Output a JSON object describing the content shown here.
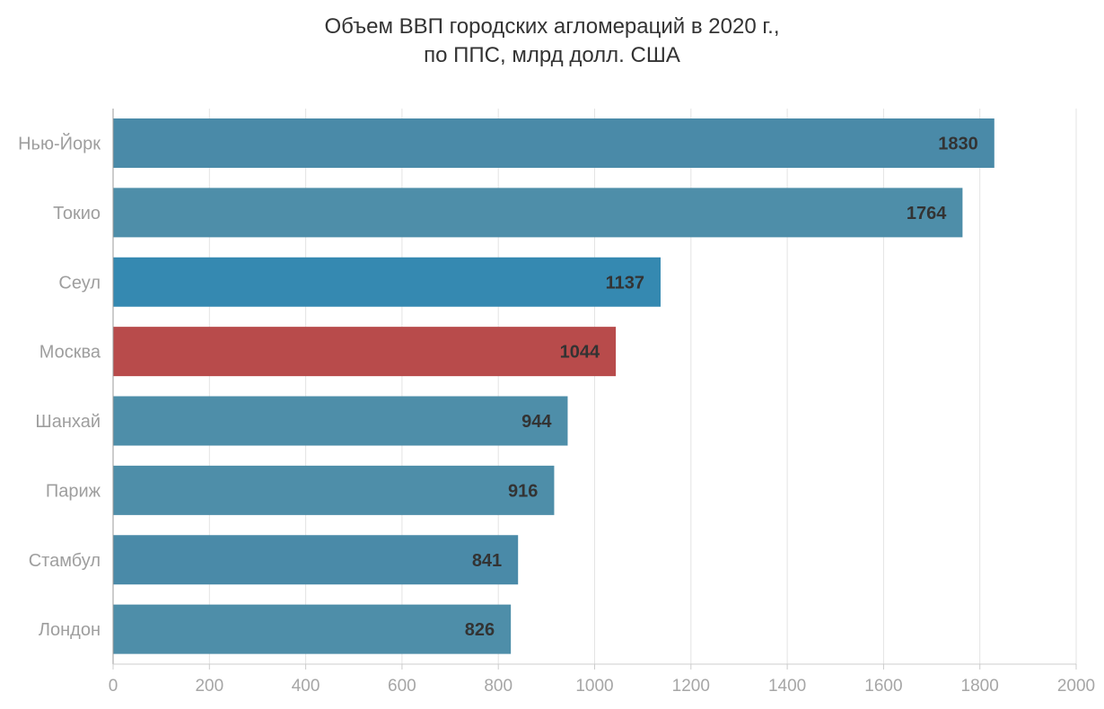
{
  "chart_data": {
    "type": "bar",
    "orientation": "horizontal",
    "title_lines": [
      "Объем ВВП городских агломераций в 2020 г.,",
      "по ППС, млрд долл. США"
    ],
    "categories": [
      "Нью-Йорк",
      "Токио",
      "Сеул",
      "Москва",
      "Шанхай",
      "Париж",
      "Стамбул",
      "Лондон"
    ],
    "values": [
      1830,
      1764,
      1137,
      1044,
      944,
      916,
      841,
      826
    ],
    "colors": [
      "#4a8aa8",
      "#4e8ea9",
      "#3589b1",
      "#b84b4b",
      "#4e8ea9",
      "#4e8ea9",
      "#4a8aa8",
      "#4e8ea9"
    ],
    "xlim": [
      0,
      2000
    ],
    "xticks": [
      0,
      200,
      400,
      600,
      800,
      1000,
      1200,
      1400,
      1600,
      1800,
      2000
    ],
    "xlabel": "",
    "ylabel": "",
    "grid": true
  }
}
